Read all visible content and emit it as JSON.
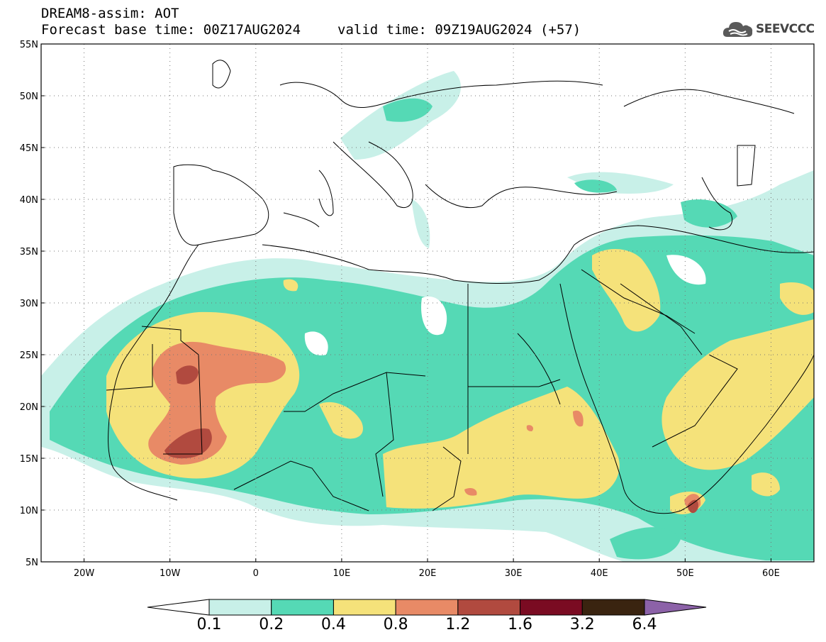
{
  "header": {
    "line1": "DREAM8-assim: AOT",
    "base_time": "Forecast base time: 00Z17AUG2024",
    "valid_time": "valid time: 09Z19AUG2024 (+57)"
  },
  "logo": {
    "text": "SEEVCCC",
    "icon": "cloud-icon"
  },
  "axes": {
    "lat_labels": [
      "55N",
      "50N",
      "45N",
      "40N",
      "35N",
      "30N",
      "25N",
      "20N",
      "15N",
      "10N",
      "5N"
    ],
    "lon_labels": [
      "20W",
      "10W",
      "0",
      "10E",
      "20E",
      "30E",
      "40E",
      "50E",
      "60E"
    ]
  },
  "colorbar": {
    "labels": [
      "0.1",
      "0.2",
      "0.4",
      "0.8",
      "1.2",
      "1.6",
      "3.2",
      "6.4"
    ],
    "colors": [
      "#ffffff",
      "#c8f0e8",
      "#55d9b5",
      "#f5e27a",
      "#e88a66",
      "#b14a3f",
      "#7a0b22",
      "#3a2410",
      "#8c62a8"
    ]
  },
  "colors": {
    "land": "#ffffff",
    "aot_0_1": "#c8f0e8",
    "aot_0_2": "#55d9b5",
    "aot_0_4": "#f5e27a",
    "aot_0_8": "#e88a66",
    "aot_1_2": "#b14a3f",
    "border": "#000000"
  }
}
